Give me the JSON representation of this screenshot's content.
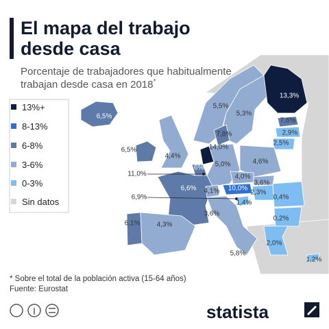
{
  "header": {
    "title_lines": [
      "El mapa del trabajo",
      "desde casa"
    ],
    "subtitle_lines": [
      "Porcentaje de trabajadores que habitualmente",
      "trabajan desde casa en 2018"
    ],
    "subtitle_mark": "*"
  },
  "legend": [
    "13%+",
    "8-13%",
    "6-8%",
    "3-6%",
    "0-3%",
    "Sin datos"
  ],
  "map_labels": [
    "13,3%",
    "5,5%",
    "5,3%",
    "7,6%",
    "2,9%",
    "2,5%",
    "6,5%",
    "7,8%",
    "14,0%",
    "6,5%",
    "4,4%",
    "6,6%",
    "5,0%",
    "4,6%",
    "11,0%",
    "4,0%",
    "3,6%",
    "6,6%",
    "4,1%",
    "10,0%",
    "2,3%",
    "0,4%",
    "6,9%",
    "1,4%",
    "3,6%",
    "0,2%",
    "6,1%",
    "4,3%",
    "2,0%",
    "5,8%",
    "1,2%"
  ],
  "footer": {
    "note": "* Sobre el total de la población activa (15-64 años)",
    "source": "Fuente: Eurostat",
    "brand": "statista"
  }
}
